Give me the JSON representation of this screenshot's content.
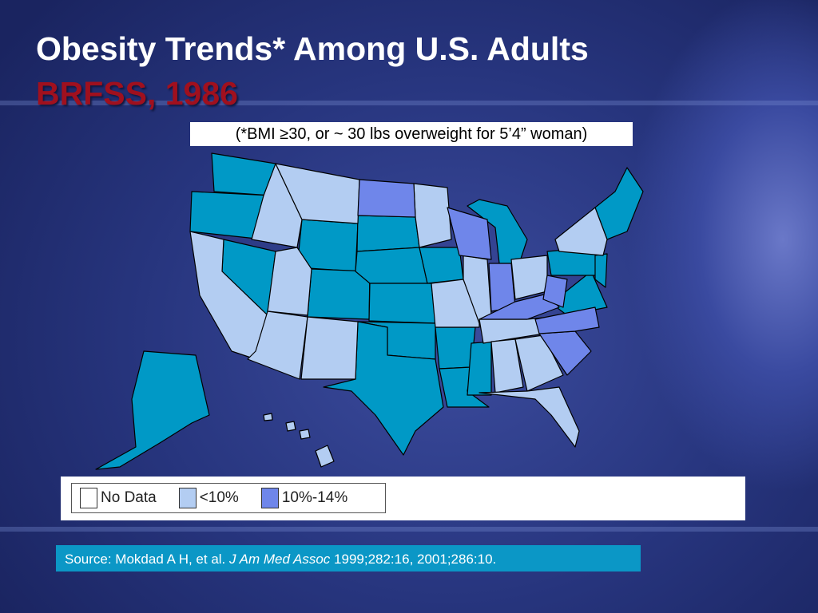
{
  "header": {
    "title": "Obesity Trends* Among U.S. Adults",
    "subtitle": "BRFSS, 1986"
  },
  "note": "(*BMI ≥30, or ~ 30 lbs overweight for 5’4” woman)",
  "legend": [
    {
      "label": "No Data",
      "color": "#ffffff"
    },
    {
      "label": "<10%",
      "color": "#b3cdf2"
    },
    {
      "label": "10%-14%",
      "color": "#6f86ea"
    }
  ],
  "source": {
    "prefix": "Source: Mokdad A H, et al.",
    "journal": "J Am Med Assoc",
    "citation": "1999;282:16, 2001;286:10."
  }
}
